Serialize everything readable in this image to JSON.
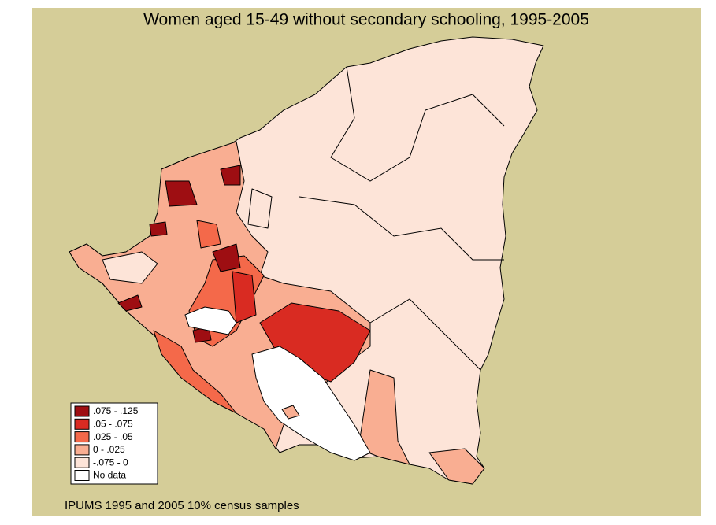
{
  "title": "Women aged 15-49 without secondary schooling, 1995-2005",
  "legend": {
    "items": [
      {
        "label": ".075 - .125",
        "color": "#9e0e12"
      },
      {
        "label": ".05 - .075",
        "color": "#d92b22"
      },
      {
        "label": ".025 - .05",
        "color": "#f4694a"
      },
      {
        "label": "0 - .025",
        "color": "#f9ae92"
      },
      {
        "label": "-.075 - 0",
        "color": "#fde4d8"
      },
      {
        "label": "No data",
        "color": "#ffffff"
      }
    ]
  },
  "source": "IPUMS 1995 and 2005 10% census samples"
}
